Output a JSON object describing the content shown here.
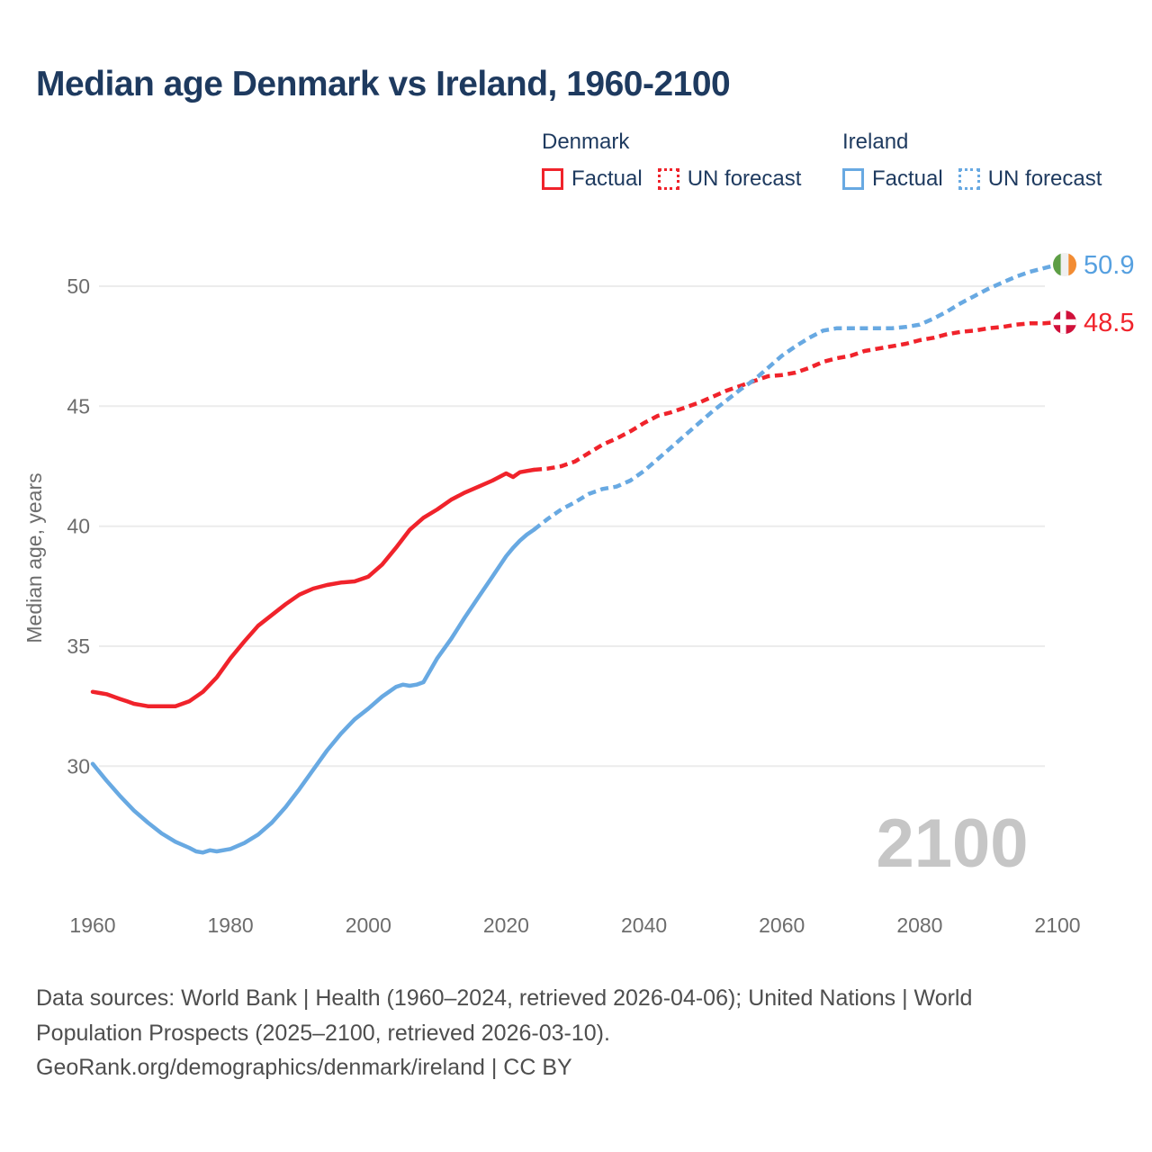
{
  "title": "Median age Denmark vs Ireland, 1960-2100",
  "legend": {
    "denmark": {
      "label": "Denmark",
      "factual_label": "Factual",
      "forecast_label": "UN forecast"
    },
    "ireland": {
      "label": "Ireland",
      "factual_label": "Factual",
      "forecast_label": "UN forecast"
    }
  },
  "watermark": "2100",
  "footer": {
    "line1": "Data sources: World Bank | Health (1960–2024, retrieved 2026-04-06); United Nations | World",
    "line2": "Population Prospects (2025–2100, retrieved 2026-03-10).",
    "line3": "GeoRank.org/demographics/denmark/ireland | CC BY"
  },
  "colors": {
    "denmark_red": "#f0232b",
    "ireland_blue": "#68a9e2",
    "ireland_value_blue": "#56a0e0",
    "denmark_flag_red": "#d0103a",
    "ireland_flag_green": "#5d9e45",
    "ireland_flag_white": "#f0f0f0",
    "ireland_flag_orange": "#f28c33",
    "title_navy": "#1e3a5f",
    "grid_gray": "#ececec",
    "tick_gray": "#6d6d6d",
    "watermark_gray": "#c6c6c6",
    "footer_gray": "#4e4e4e"
  },
  "end_labels": [
    {
      "id": "ireland",
      "flag": "ireland",
      "value": "50.9",
      "color": "#56a0e0"
    },
    {
      "id": "denmark",
      "flag": "denmark",
      "value": "48.5",
      "color": "#f0232b"
    }
  ],
  "flags": {
    "ireland": {
      "type": "tricolor",
      "colors": [
        "#5d9e45",
        "#f0f0f0",
        "#f28c33"
      ]
    },
    "denmark": {
      "type": "nordic-cross",
      "bg": "#d0103a",
      "cross": "#ffffff"
    }
  },
  "chart_data": {
    "type": "line",
    "title": "Median age Denmark vs Ireland, 1960-2100",
    "xlabel": "",
    "ylabel": "Median age, years",
    "x_ticks": [
      1960,
      1980,
      2000,
      2020,
      2040,
      2060,
      2080,
      2100
    ],
    "y_ticks": [
      30,
      35,
      40,
      45,
      50
    ],
    "xlim": [
      1960,
      2100
    ],
    "ylim": [
      26,
      51.5
    ],
    "grid": "horizontal",
    "legend_position": "top-right",
    "series": [
      {
        "name": "Denmark Factual",
        "country": "Denmark",
        "kind": "factual",
        "style": "solid",
        "color": "#f0232b",
        "points": [
          [
            1960,
            33.1
          ],
          [
            1961,
            33.05
          ],
          [
            1962,
            33.0
          ],
          [
            1963,
            32.9
          ],
          [
            1964,
            32.8
          ],
          [
            1965,
            32.7
          ],
          [
            1966,
            32.6
          ],
          [
            1967,
            32.55
          ],
          [
            1968,
            32.5
          ],
          [
            1970,
            32.5
          ],
          [
            1972,
            32.5
          ],
          [
            1974,
            32.7
          ],
          [
            1976,
            33.1
          ],
          [
            1978,
            33.7
          ],
          [
            1980,
            34.5
          ],
          [
            1982,
            35.2
          ],
          [
            1984,
            35.85
          ],
          [
            1986,
            36.3
          ],
          [
            1988,
            36.75
          ],
          [
            1990,
            37.15
          ],
          [
            1992,
            37.4
          ],
          [
            1994,
            37.55
          ],
          [
            1996,
            37.65
          ],
          [
            1998,
            37.7
          ],
          [
            2000,
            37.9
          ],
          [
            2002,
            38.4
          ],
          [
            2004,
            39.1
          ],
          [
            2006,
            39.85
          ],
          [
            2008,
            40.35
          ],
          [
            2010,
            40.7
          ],
          [
            2012,
            41.1
          ],
          [
            2014,
            41.4
          ],
          [
            2016,
            41.65
          ],
          [
            2018,
            41.9
          ],
          [
            2019,
            42.05
          ],
          [
            2020,
            42.2
          ],
          [
            2021,
            42.05
          ],
          [
            2022,
            42.25
          ],
          [
            2023,
            42.3
          ],
          [
            2024,
            42.35
          ]
        ]
      },
      {
        "name": "Denmark UN forecast",
        "country": "Denmark",
        "kind": "forecast",
        "style": "dashed",
        "color": "#f0232b",
        "points": [
          [
            2024,
            42.35
          ],
          [
            2026,
            42.4
          ],
          [
            2028,
            42.5
          ],
          [
            2030,
            42.7
          ],
          [
            2032,
            43.05
          ],
          [
            2034,
            43.4
          ],
          [
            2036,
            43.65
          ],
          [
            2038,
            43.95
          ],
          [
            2040,
            44.3
          ],
          [
            2042,
            44.6
          ],
          [
            2044,
            44.75
          ],
          [
            2046,
            44.95
          ],
          [
            2048,
            45.15
          ],
          [
            2050,
            45.4
          ],
          [
            2052,
            45.65
          ],
          [
            2054,
            45.85
          ],
          [
            2056,
            46.05
          ],
          [
            2058,
            46.25
          ],
          [
            2060,
            46.3
          ],
          [
            2062,
            46.4
          ],
          [
            2064,
            46.6
          ],
          [
            2066,
            46.85
          ],
          [
            2068,
            47.0
          ],
          [
            2070,
            47.1
          ],
          [
            2072,
            47.3
          ],
          [
            2074,
            47.4
          ],
          [
            2076,
            47.5
          ],
          [
            2078,
            47.6
          ],
          [
            2080,
            47.75
          ],
          [
            2082,
            47.85
          ],
          [
            2084,
            48.0
          ],
          [
            2086,
            48.1
          ],
          [
            2088,
            48.15
          ],
          [
            2090,
            48.25
          ],
          [
            2092,
            48.3
          ],
          [
            2094,
            48.4
          ],
          [
            2096,
            48.45
          ],
          [
            2098,
            48.45
          ],
          [
            2100,
            48.5
          ]
        ]
      },
      {
        "name": "Ireland Factual",
        "country": "Ireland",
        "kind": "factual",
        "style": "solid",
        "color": "#68a9e2",
        "points": [
          [
            1960,
            30.1
          ],
          [
            1962,
            29.4
          ],
          [
            1964,
            28.75
          ],
          [
            1966,
            28.15
          ],
          [
            1968,
            27.65
          ],
          [
            1970,
            27.2
          ],
          [
            1972,
            26.85
          ],
          [
            1974,
            26.6
          ],
          [
            1975,
            26.45
          ],
          [
            1976,
            26.4
          ],
          [
            1977,
            26.5
          ],
          [
            1978,
            26.45
          ],
          [
            1980,
            26.55
          ],
          [
            1982,
            26.8
          ],
          [
            1984,
            27.15
          ],
          [
            1986,
            27.65
          ],
          [
            1988,
            28.3
          ],
          [
            1990,
            29.05
          ],
          [
            1992,
            29.85
          ],
          [
            1994,
            30.65
          ],
          [
            1996,
            31.35
          ],
          [
            1998,
            31.95
          ],
          [
            2000,
            32.4
          ],
          [
            2002,
            32.9
          ],
          [
            2004,
            33.3
          ],
          [
            2005,
            33.4
          ],
          [
            2006,
            33.35
          ],
          [
            2007,
            33.4
          ],
          [
            2008,
            33.5
          ],
          [
            2010,
            34.5
          ],
          [
            2012,
            35.3
          ],
          [
            2014,
            36.2
          ],
          [
            2016,
            37.05
          ],
          [
            2018,
            37.9
          ],
          [
            2020,
            38.75
          ],
          [
            2021,
            39.1
          ],
          [
            2022,
            39.4
          ],
          [
            2023,
            39.65
          ],
          [
            2024,
            39.85
          ]
        ]
      },
      {
        "name": "Ireland UN forecast",
        "country": "Ireland",
        "kind": "forecast",
        "style": "dashed",
        "color": "#68a9e2",
        "points": [
          [
            2024,
            39.85
          ],
          [
            2026,
            40.3
          ],
          [
            2028,
            40.7
          ],
          [
            2030,
            41.0
          ],
          [
            2032,
            41.35
          ],
          [
            2034,
            41.55
          ],
          [
            2036,
            41.65
          ],
          [
            2038,
            41.9
          ],
          [
            2040,
            42.3
          ],
          [
            2042,
            42.8
          ],
          [
            2044,
            43.3
          ],
          [
            2046,
            43.8
          ],
          [
            2048,
            44.3
          ],
          [
            2050,
            44.8
          ],
          [
            2052,
            45.25
          ],
          [
            2054,
            45.7
          ],
          [
            2056,
            46.1
          ],
          [
            2058,
            46.6
          ],
          [
            2060,
            47.1
          ],
          [
            2062,
            47.5
          ],
          [
            2064,
            47.85
          ],
          [
            2066,
            48.15
          ],
          [
            2068,
            48.25
          ],
          [
            2070,
            48.25
          ],
          [
            2072,
            48.25
          ],
          [
            2074,
            48.25
          ],
          [
            2076,
            48.25
          ],
          [
            2078,
            48.3
          ],
          [
            2080,
            48.4
          ],
          [
            2082,
            48.65
          ],
          [
            2084,
            48.95
          ],
          [
            2086,
            49.3
          ],
          [
            2088,
            49.6
          ],
          [
            2090,
            49.9
          ],
          [
            2092,
            50.15
          ],
          [
            2094,
            50.4
          ],
          [
            2096,
            50.6
          ],
          [
            2098,
            50.75
          ],
          [
            2100,
            50.9
          ]
        ]
      }
    ]
  }
}
